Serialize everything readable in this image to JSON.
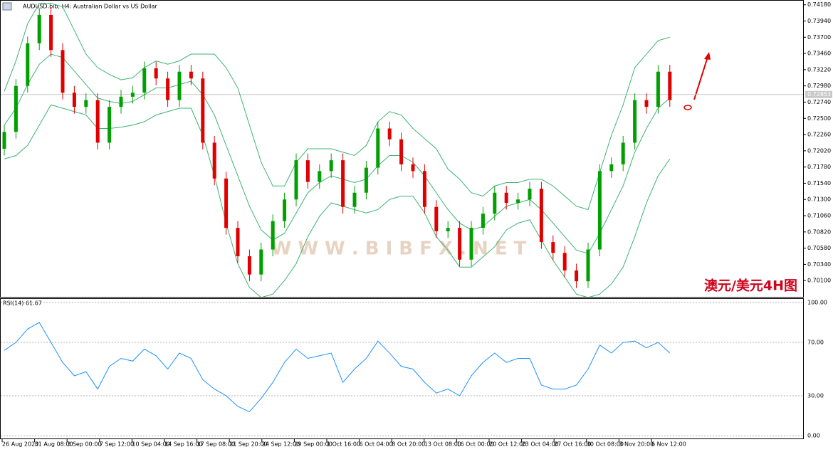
{
  "chart_data": [
    {
      "type": "candlestick",
      "title": "AUDUSD.bib, H4:  Australian Dollar vs US Dollar",
      "annotation": "澳元/美元4H图",
      "watermark": "W W W . B I B F X . N E T",
      "current_price": {
        "value": 0.72853,
        "label": "0.72853"
      },
      "up_color": "#00a000",
      "down_color": "#e00000",
      "band_color": "#3cb371",
      "ylim": [
        0.6986,
        0.7424
      ],
      "yticks": [
        {
          "value": 0.7418,
          "label": "0.74180"
        },
        {
          "value": 0.7394,
          "label": "0.73940"
        },
        {
          "value": 0.737,
          "label": "0.73700"
        },
        {
          "value": 0.7346,
          "label": "0.73460"
        },
        {
          "value": 0.7322,
          "label": "0.73220"
        },
        {
          "value": 0.7298,
          "label": "0.72980"
        },
        {
          "value": 0.7274,
          "label": "0.72740"
        },
        {
          "value": 0.725,
          "label": "0.72500"
        },
        {
          "value": 0.7226,
          "label": "0.72260"
        },
        {
          "value": 0.7202,
          "label": "0.72020"
        },
        {
          "value": 0.7178,
          "label": "0.71780"
        },
        {
          "value": 0.7154,
          "label": "0.71540"
        },
        {
          "value": 0.713,
          "label": "0.71300"
        },
        {
          "value": 0.7106,
          "label": "0.71060"
        },
        {
          "value": 0.7082,
          "label": "0.70820"
        },
        {
          "value": 0.7058,
          "label": "0.70580"
        },
        {
          "value": 0.7034,
          "label": "0.70340"
        },
        {
          "value": 0.701,
          "label": "0.70100"
        }
      ],
      "x_labels": [
        "26 Aug 2020",
        "31 Aug 08:00",
        "3 Sep 00:00",
        "7 Sep 12:00",
        "10 Sep 04:00",
        "14 Sep 16:00",
        "17 Sep 08:00",
        "21 Sep 20:00",
        "24 Sep 12:00",
        "29 Sep 00:00",
        "1 Oct 16:00",
        "6 Oct 04:00",
        "8 Oct 20:00",
        "13 Oct 08:00",
        "16 Oct 00:00",
        "20 Oct 12:00",
        "23 Oct 04:00",
        "27 Oct 16:00",
        "30 Oct 08:00",
        "3 Nov 20:00",
        "6 Nov 12:00"
      ],
      "open": [
        0.7205,
        0.723,
        0.7298,
        0.7361,
        0.7403,
        0.7351,
        0.7288,
        0.7267,
        0.7277,
        0.7214,
        0.7267,
        0.7282,
        0.7288,
        0.7324,
        0.7309,
        0.7277,
        0.7319,
        0.7309,
        0.7214,
        0.7161,
        0.7088,
        0.7046,
        0.7019,
        0.7056,
        0.7098,
        0.713,
        0.7188,
        0.7156,
        0.7172,
        0.7188,
        0.7119,
        0.714,
        0.7177,
        0.7235,
        0.7219,
        0.7182,
        0.7172,
        0.7119,
        0.7083,
        0.7088,
        0.7041,
        0.7088,
        0.7109,
        0.714,
        0.7125,
        0.713,
        0.7146,
        0.7067,
        0.7051,
        0.7025,
        0.7009,
        0.7056,
        0.7172,
        0.7182,
        0.7214,
        0.7277,
        0.7267,
        0.7319
      ],
      "high": [
        0.724,
        0.7308,
        0.7371,
        0.7413,
        0.7413,
        0.7361,
        0.7298,
        0.7287,
        0.7287,
        0.7277,
        0.7292,
        0.7298,
        0.7334,
        0.7334,
        0.7319,
        0.7329,
        0.7329,
        0.7319,
        0.7224,
        0.7171,
        0.7098,
        0.7056,
        0.7066,
        0.7108,
        0.714,
        0.7198,
        0.7198,
        0.7182,
        0.7198,
        0.7198,
        0.715,
        0.7187,
        0.7245,
        0.7245,
        0.7229,
        0.7192,
        0.7182,
        0.7129,
        0.7098,
        0.7098,
        0.7098,
        0.7119,
        0.715,
        0.715,
        0.714,
        0.7156,
        0.7156,
        0.7077,
        0.7061,
        0.7035,
        0.7066,
        0.7182,
        0.7192,
        0.7224,
        0.7287,
        0.7287,
        0.7329,
        0.7329
      ],
      "low": [
        0.7195,
        0.722,
        0.7288,
        0.7351,
        0.7341,
        0.7278,
        0.7257,
        0.7257,
        0.7204,
        0.7204,
        0.7257,
        0.7272,
        0.7278,
        0.7299,
        0.7267,
        0.7267,
        0.7299,
        0.7204,
        0.7151,
        0.7078,
        0.7036,
        0.7009,
        0.7009,
        0.7046,
        0.7088,
        0.712,
        0.7146,
        0.7146,
        0.7162,
        0.7109,
        0.7109,
        0.713,
        0.7167,
        0.7209,
        0.7172,
        0.7162,
        0.7109,
        0.7073,
        0.7073,
        0.7031,
        0.7031,
        0.7078,
        0.7099,
        0.7115,
        0.7115,
        0.712,
        0.7057,
        0.7041,
        0.7015,
        0.6999,
        0.6999,
        0.7046,
        0.7162,
        0.7172,
        0.7204,
        0.7257,
        0.7257,
        0.7267
      ],
      "close": [
        0.723,
        0.7298,
        0.7361,
        0.7403,
        0.7351,
        0.7288,
        0.7267,
        0.7277,
        0.7214,
        0.7267,
        0.7282,
        0.7288,
        0.7324,
        0.7309,
        0.7277,
        0.7319,
        0.7309,
        0.7214,
        0.7161,
        0.7088,
        0.7046,
        0.7019,
        0.7056,
        0.7098,
        0.713,
        0.7188,
        0.7156,
        0.7172,
        0.7188,
        0.7119,
        0.714,
        0.7177,
        0.7235,
        0.7219,
        0.7182,
        0.7172,
        0.7119,
        0.7083,
        0.7088,
        0.7041,
        0.7088,
        0.7109,
        0.714,
        0.7125,
        0.713,
        0.7146,
        0.7067,
        0.7051,
        0.7025,
        0.7009,
        0.7056,
        0.7172,
        0.7182,
        0.7214,
        0.7277,
        0.7267,
        0.7319,
        0.7277
      ],
      "bands": [
        {
          "values": [
            0.729,
            0.7335,
            0.739,
            0.742,
            0.742,
            0.7415,
            0.738,
            0.7345,
            0.7325,
            0.7315,
            0.7307,
            0.731,
            0.7325,
            0.7335,
            0.733,
            0.7335,
            0.7345,
            0.7345,
            0.7345,
            0.7325,
            0.7295,
            0.724,
            0.7185,
            0.715,
            0.715,
            0.7185,
            0.7205,
            0.7205,
            0.7205,
            0.72,
            0.7195,
            0.721,
            0.7245,
            0.726,
            0.7255,
            0.7235,
            0.722,
            0.7205,
            0.7175,
            0.716,
            0.714,
            0.7135,
            0.715,
            0.7155,
            0.7155,
            0.716,
            0.716,
            0.715,
            0.7135,
            0.712,
            0.7115,
            0.717,
            0.7225,
            0.727,
            0.7325,
            0.7345,
            0.7365,
            0.737
          ]
        },
        {
          "values": [
            0.724,
            0.7265,
            0.73,
            0.733,
            0.7345,
            0.734,
            0.732,
            0.73,
            0.728,
            0.7275,
            0.7272,
            0.7275,
            0.7285,
            0.7295,
            0.7295,
            0.73,
            0.7305,
            0.7285,
            0.7255,
            0.721,
            0.7165,
            0.712,
            0.7085,
            0.707,
            0.708,
            0.711,
            0.714,
            0.7155,
            0.7165,
            0.716,
            0.7155,
            0.716,
            0.718,
            0.7195,
            0.7195,
            0.7185,
            0.7165,
            0.714,
            0.7115,
            0.7095,
            0.7085,
            0.709,
            0.7105,
            0.712,
            0.7125,
            0.713,
            0.7115,
            0.7095,
            0.7075,
            0.7055,
            0.705,
            0.708,
            0.7115,
            0.715,
            0.72,
            0.7235,
            0.7265,
            0.728
          ]
        },
        {
          "values": [
            0.719,
            0.7195,
            0.721,
            0.724,
            0.727,
            0.7265,
            0.726,
            0.7255,
            0.7235,
            0.7235,
            0.7237,
            0.724,
            0.7245,
            0.7255,
            0.726,
            0.7265,
            0.7265,
            0.7225,
            0.7165,
            0.7095,
            0.7035,
            0.7,
            0.6985,
            0.699,
            0.701,
            0.7035,
            0.7075,
            0.7105,
            0.7125,
            0.712,
            0.7115,
            0.711,
            0.7115,
            0.713,
            0.7135,
            0.7135,
            0.711,
            0.7075,
            0.7055,
            0.703,
            0.703,
            0.7045,
            0.706,
            0.7085,
            0.7095,
            0.71,
            0.707,
            0.704,
            0.7015,
            0.699,
            0.6985,
            0.699,
            0.7005,
            0.703,
            0.7075,
            0.7125,
            0.7165,
            0.719
          ]
        }
      ]
    },
    {
      "type": "line",
      "title": "RSI(14) 61.67",
      "color": "#1e90ff",
      "ylim": [
        -2.6,
        102.6
      ],
      "yticks": [
        {
          "value": 100,
          "label": "100.00"
        },
        {
          "value": 70,
          "label": "70.00"
        },
        {
          "value": 30,
          "label": "30.00"
        },
        {
          "value": 0,
          "label": "0.00"
        }
      ],
      "values": [
        64,
        70,
        80,
        85,
        70,
        55,
        45,
        48,
        35,
        52,
        58,
        56,
        65,
        60,
        50,
        62,
        58,
        42,
        35,
        30,
        22,
        18,
        28,
        40,
        55,
        65,
        58,
        60,
        62,
        40,
        50,
        58,
        71,
        62,
        52,
        50,
        40,
        32,
        35,
        30,
        45,
        55,
        62,
        55,
        58,
        58,
        38,
        35,
        35,
        38,
        50,
        68,
        62,
        70,
        71,
        66,
        70,
        62
      ]
    }
  ]
}
